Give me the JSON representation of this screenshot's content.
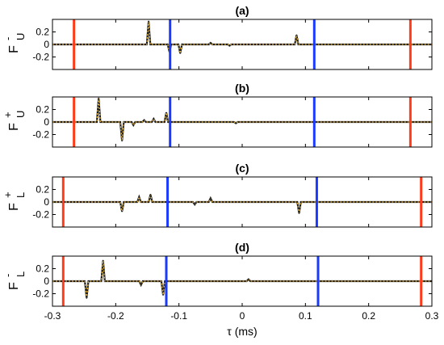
{
  "chart_data": {
    "type": "line",
    "xlabel": "τ (ms)",
    "xlim": [
      -0.3,
      0.3
    ],
    "xticks": [
      -0.3,
      -0.2,
      -0.1,
      0,
      0.1,
      0.2,
      0.3
    ],
    "xtick_labels": [
      "-0.3",
      "-0.2",
      "-0.1",
      "0",
      "0.1",
      "0.2",
      "0.3"
    ],
    "ylim": [
      -0.4,
      0.4
    ],
    "yticks": [
      0.2,
      0,
      -0.2
    ],
    "ytick_labels": [
      "0.2",
      "0",
      "-0.2"
    ],
    "colors": {
      "signal": "#1a1a1a",
      "overlay": "#e8b53a",
      "red_marker": "#ff3b1a",
      "blue_marker": "#1a3bff"
    },
    "panels": [
      {
        "title": "(a)",
        "ylabel": {
          "base": "F",
          "sup": "-",
          "sub": "U"
        },
        "markers": {
          "red": [
            -0.266,
            0.266
          ],
          "blue": [
            -0.114,
            0.114
          ]
        },
        "peaks": [
          {
            "x": -0.148,
            "y": 0.37
          },
          {
            "x": -0.115,
            "y": -0.12
          },
          {
            "x": -0.098,
            "y": -0.14
          },
          {
            "x": -0.05,
            "y": 0.025
          },
          {
            "x": -0.02,
            "y": -0.02
          },
          {
            "x": 0.086,
            "y": 0.15
          }
        ]
      },
      {
        "title": "(b)",
        "ylabel": {
          "base": "F",
          "sup": "+",
          "sub": "U"
        },
        "markers": {
          "red": [
            -0.266,
            0.266
          ],
          "blue": [
            -0.114,
            0.114
          ]
        },
        "peaks": [
          {
            "x": -0.227,
            "y": 0.38
          },
          {
            "x": -0.19,
            "y": -0.3
          },
          {
            "x": -0.172,
            "y": -0.05
          },
          {
            "x": -0.155,
            "y": 0.03
          },
          {
            "x": -0.14,
            "y": 0.05
          },
          {
            "x": -0.12,
            "y": 0.15
          },
          {
            "x": -0.01,
            "y": -0.02
          }
        ]
      },
      {
        "title": "(c)",
        "ylabel": {
          "base": "F",
          "sup": "+",
          "sub": "L"
        },
        "markers": {
          "red": [
            -0.283,
            0.283
          ],
          "blue": [
            -0.118,
            0.118
          ]
        },
        "peaks": [
          {
            "x": -0.19,
            "y": -0.15
          },
          {
            "x": -0.163,
            "y": 0.08
          },
          {
            "x": -0.145,
            "y": 0.12
          },
          {
            "x": -0.075,
            "y": -0.04
          },
          {
            "x": -0.05,
            "y": 0.06
          },
          {
            "x": 0.09,
            "y": -0.18
          }
        ]
      },
      {
        "title": "(d)",
        "ylabel": {
          "base": "F",
          "sup": "-",
          "sub": "L"
        },
        "markers": {
          "red": [
            -0.283,
            0.283
          ],
          "blue": [
            -0.12,
            0.12
          ]
        },
        "peaks": [
          {
            "x": -0.246,
            "y": -0.27
          },
          {
            "x": -0.22,
            "y": 0.33
          },
          {
            "x": -0.16,
            "y": -0.06
          },
          {
            "x": -0.125,
            "y": -0.22
          },
          {
            "x": 0.01,
            "y": 0.03
          }
        ]
      }
    ]
  }
}
